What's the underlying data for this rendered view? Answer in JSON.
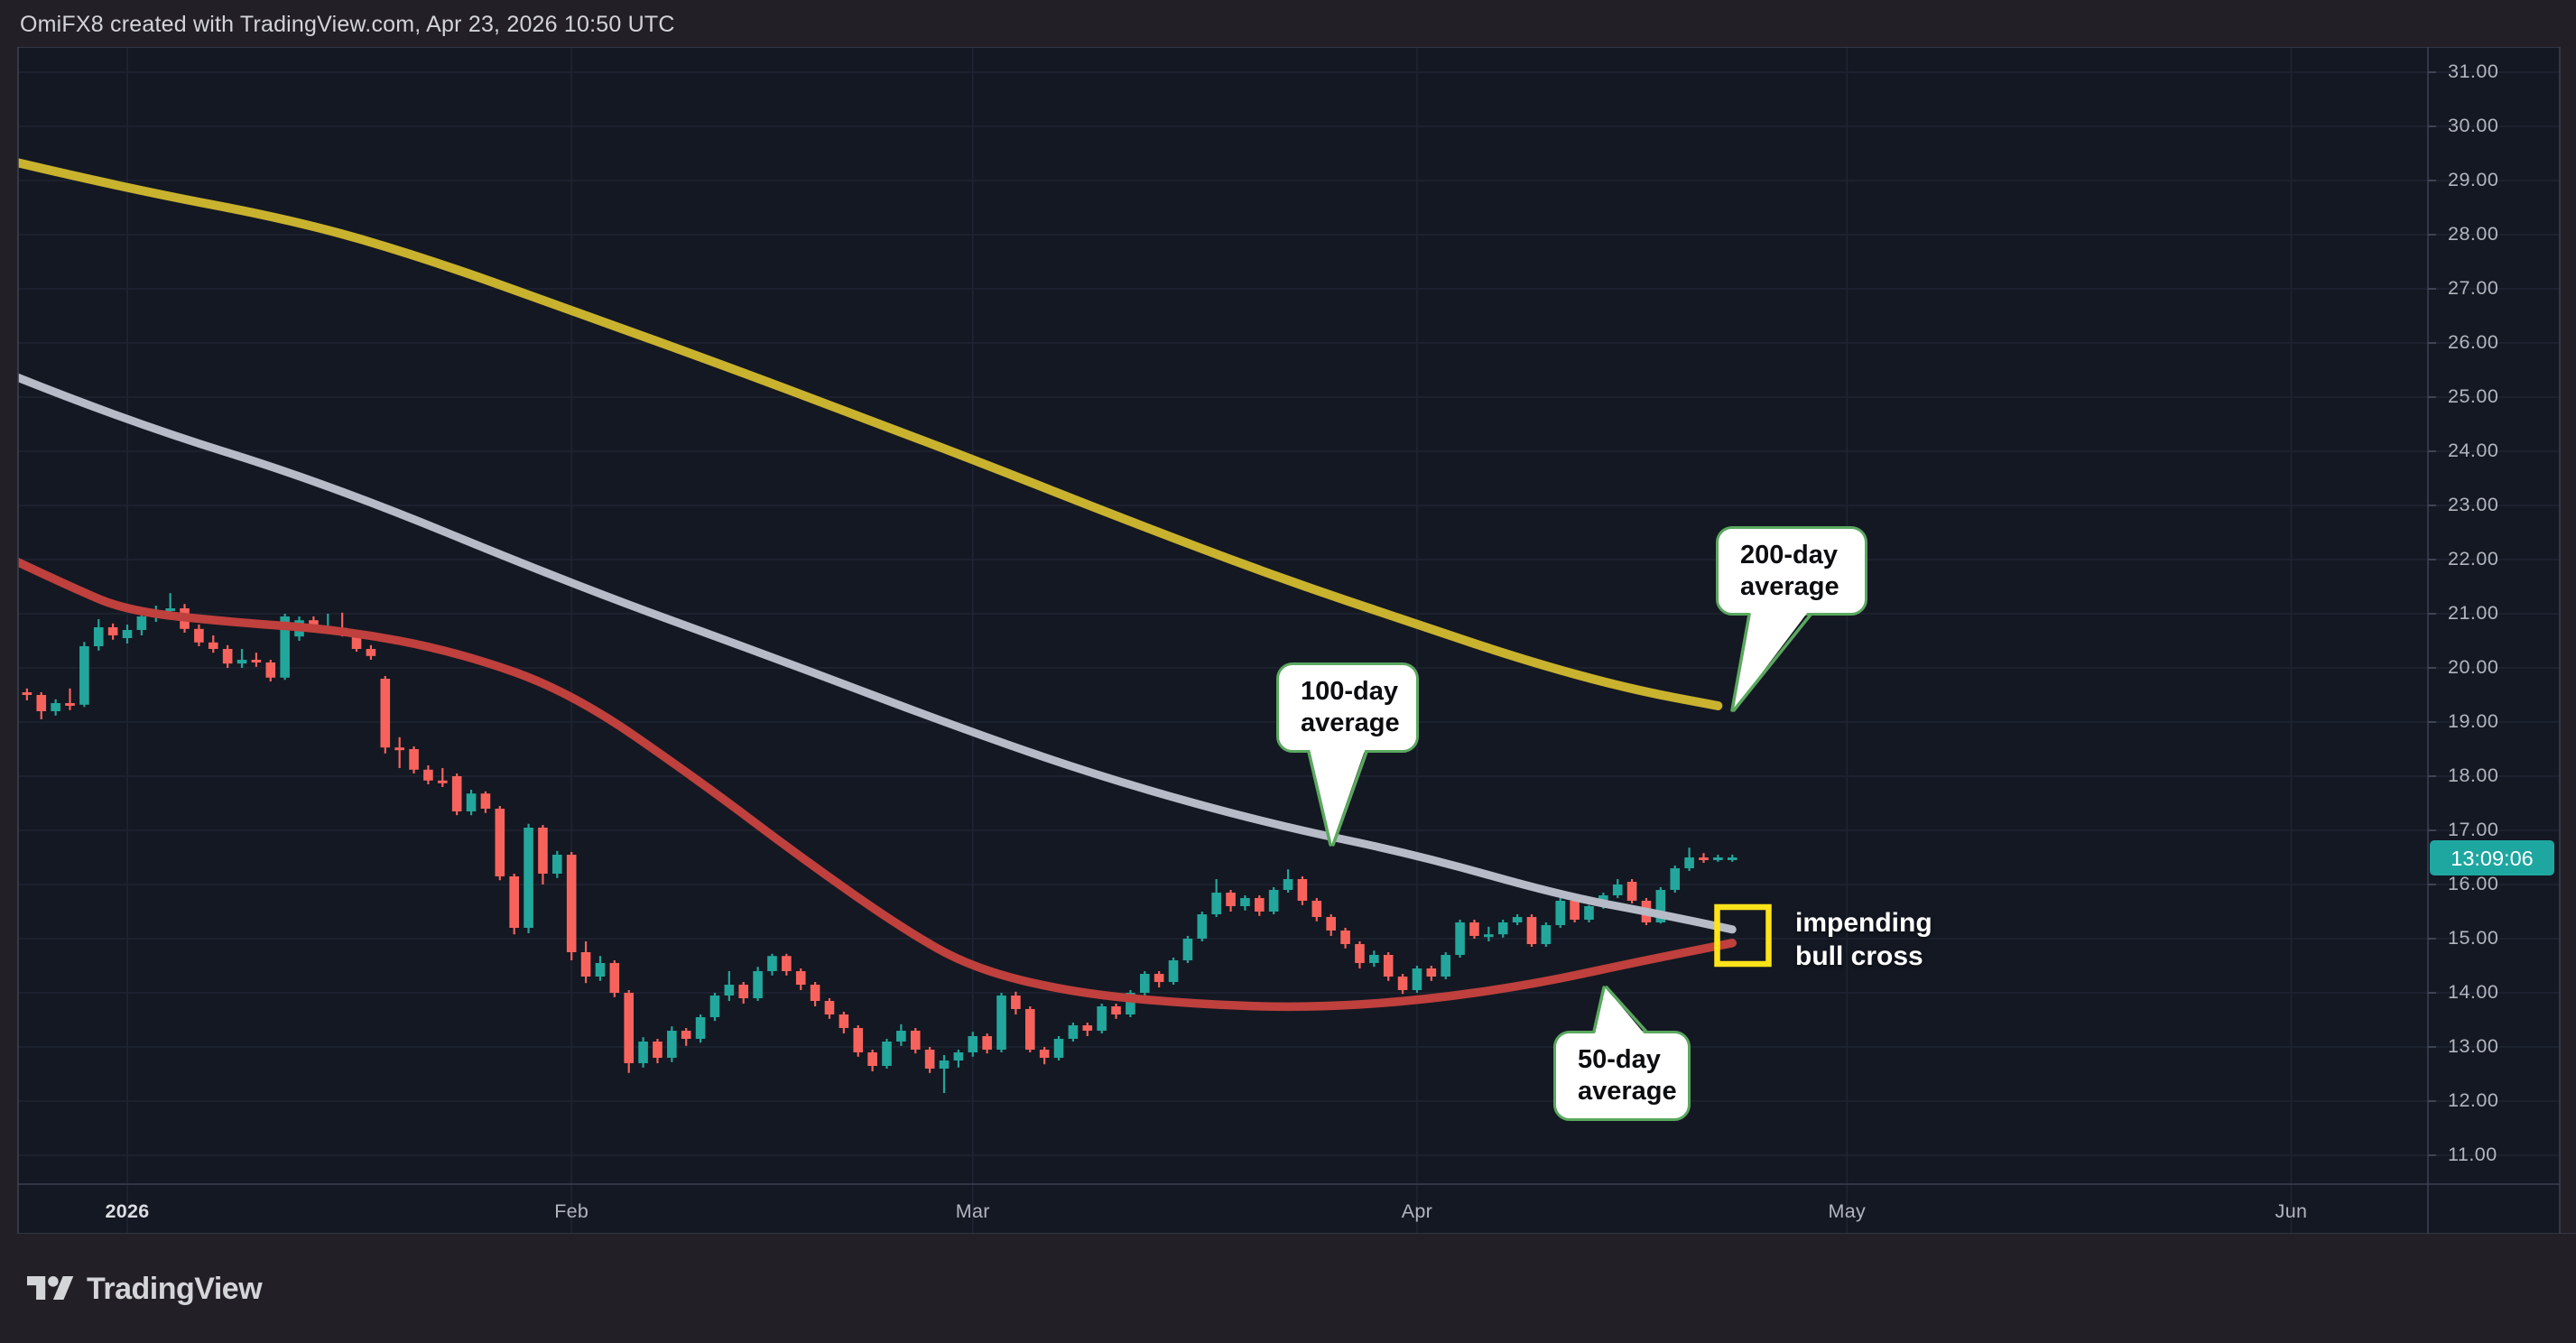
{
  "header": {
    "title": "OmiFX8 created with TradingView.com, Apr 23, 2026 10:50 UTC"
  },
  "price_axis": {
    "labels": [
      "31.00",
      "30.00",
      "29.00",
      "28.00",
      "27.00",
      "26.00",
      "25.00",
      "24.00",
      "23.00",
      "22.00",
      "21.00",
      "20.00",
      "19.00",
      "18.00",
      "17.00",
      "16.00",
      "15.00",
      "14.00",
      "13.00",
      "12.00",
      "11.00"
    ],
    "countdown": "13:09:06"
  },
  "time_axis": {
    "labels": [
      "2026",
      "Feb",
      "Mar",
      "Apr",
      "May",
      "Jun"
    ]
  },
  "annotations": {
    "callouts": [
      {
        "id": "ma200",
        "line1": "200-day",
        "line2": "average"
      },
      {
        "id": "ma100",
        "line1": "100-day",
        "line2": "average"
      },
      {
        "id": "ma50",
        "line1": "50-day",
        "line2": "average"
      }
    ],
    "cross_label": {
      "line1": "impending",
      "line2": "bull cross"
    }
  },
  "footer": {
    "brand": "TradingView"
  },
  "colors": {
    "outer_bg": "#231f27",
    "chart_bg": "#141822",
    "grid": "#1e2432",
    "separator": "#3a4050",
    "axis_text": "#b2b5be",
    "up": "#23a69b",
    "down": "#f7635c",
    "ma50": "#bf403d",
    "ma100": "#b7bbc7",
    "ma200": "#c9b22e",
    "callout_border": "#5aa85f",
    "highlight_yellow": "#ffe31a",
    "countdown_bg": "#1ea7a0"
  },
  "chart_data": {
    "type": "candlestick",
    "title": "OmiFX8 created with TradingView.com, Apr 23, 2026 10:50 UTC",
    "frequency": "daily",
    "start_date": "2025-12-24",
    "end_date": "2026-04-23",
    "ylim": [
      10.33,
      31.4
    ],
    "y_tick_step": 1.0,
    "grid": true,
    "month_ticks": [
      {
        "label": "2026",
        "date": "2026-01-01",
        "emphasis": true
      },
      {
        "label": "Feb",
        "date": "2026-02-01"
      },
      {
        "label": "Mar",
        "date": "2026-03-01"
      },
      {
        "label": "Apr",
        "date": "2026-04-01"
      },
      {
        "label": "May",
        "date": "2026-05-01"
      },
      {
        "label": "Jun",
        "date": "2026-06-01"
      }
    ],
    "candles_ohlc": [
      [
        19.5,
        19.7,
        19.38,
        19.55
      ],
      [
        19.55,
        19.62,
        19.4,
        19.5
      ],
      [
        19.5,
        19.55,
        19.05,
        19.2
      ],
      [
        19.2,
        19.42,
        19.12,
        19.35
      ],
      [
        19.35,
        19.62,
        19.22,
        19.3
      ],
      [
        19.32,
        20.48,
        19.28,
        20.4
      ],
      [
        20.4,
        20.9,
        20.32,
        20.75
      ],
      [
        20.75,
        20.82,
        20.52,
        20.6
      ],
      [
        20.55,
        20.8,
        20.45,
        20.7
      ],
      [
        20.7,
        21.0,
        20.6,
        20.95
      ],
      [
        20.95,
        21.15,
        20.85,
        21.05
      ],
      [
        21.05,
        21.38,
        20.98,
        21.1
      ],
      [
        21.1,
        21.18,
        20.65,
        20.72
      ],
      [
        20.72,
        20.8,
        20.4,
        20.47
      ],
      [
        20.47,
        20.6,
        20.28,
        20.35
      ],
      [
        20.35,
        20.42,
        20.0,
        20.08
      ],
      [
        20.08,
        20.35,
        20.0,
        20.15
      ],
      [
        20.15,
        20.28,
        20.02,
        20.1
      ],
      [
        20.1,
        20.15,
        19.75,
        19.82
      ],
      [
        19.82,
        21.0,
        19.78,
        20.95
      ],
      [
        20.58,
        20.95,
        20.5,
        20.88
      ],
      [
        20.88,
        20.95,
        20.65,
        20.72
      ],
      [
        20.72,
        21.0,
        20.66,
        20.74
      ],
      [
        20.74,
        21.02,
        20.58,
        20.65
      ],
      [
        20.65,
        20.7,
        20.3,
        20.35
      ],
      [
        20.35,
        20.42,
        20.15,
        20.22
      ],
      [
        19.8,
        19.85,
        18.42,
        18.53
      ],
      [
        18.53,
        18.72,
        18.15,
        18.5
      ],
      [
        18.5,
        18.55,
        18.05,
        18.12
      ],
      [
        18.12,
        18.2,
        17.85,
        17.92
      ],
      [
        17.92,
        18.15,
        17.8,
        17.88
      ],
      [
        18.0,
        18.05,
        17.28,
        17.35
      ],
      [
        17.35,
        17.75,
        17.28,
        17.68
      ],
      [
        17.68,
        17.72,
        17.32,
        17.4
      ],
      [
        17.4,
        17.45,
        16.08,
        16.15
      ],
      [
        16.15,
        16.2,
        15.08,
        15.2
      ],
      [
        15.2,
        17.12,
        15.1,
        17.05
      ],
      [
        17.05,
        17.1,
        16.0,
        16.2
      ],
      [
        16.2,
        16.62,
        16.12,
        16.55
      ],
      [
        16.55,
        16.6,
        14.6,
        14.75
      ],
      [
        14.75,
        14.95,
        14.18,
        14.3
      ],
      [
        14.3,
        14.68,
        14.22,
        14.55
      ],
      [
        14.55,
        14.6,
        13.92,
        14.0
      ],
      [
        14.0,
        14.05,
        12.52,
        12.7
      ],
      [
        12.7,
        13.18,
        12.62,
        13.1
      ],
      [
        13.1,
        13.15,
        12.7,
        12.8
      ],
      [
        12.8,
        13.38,
        12.72,
        13.3
      ],
      [
        13.3,
        13.35,
        13.02,
        13.15
      ],
      [
        13.15,
        13.6,
        13.08,
        13.55
      ],
      [
        13.55,
        14.0,
        13.48,
        13.95
      ],
      [
        13.95,
        14.4,
        13.85,
        14.15
      ],
      [
        14.15,
        14.2,
        13.8,
        13.9
      ],
      [
        13.9,
        14.48,
        13.85,
        14.4
      ],
      [
        14.4,
        14.72,
        14.32,
        14.68
      ],
      [
        14.68,
        14.72,
        14.32,
        14.4
      ],
      [
        14.4,
        14.45,
        14.05,
        14.15
      ],
      [
        14.15,
        14.2,
        13.75,
        13.85
      ],
      [
        13.85,
        13.9,
        13.52,
        13.6
      ],
      [
        13.6,
        13.65,
        13.25,
        13.35
      ],
      [
        13.35,
        13.4,
        12.82,
        12.9
      ],
      [
        12.9,
        12.95,
        12.55,
        12.65
      ],
      [
        12.65,
        13.15,
        12.6,
        13.1
      ],
      [
        13.1,
        13.42,
        13.02,
        13.3
      ],
      [
        13.3,
        13.35,
        12.88,
        12.95
      ],
      [
        12.95,
        13.0,
        12.52,
        12.6
      ],
      [
        12.6,
        12.85,
        12.15,
        12.75
      ],
      [
        12.75,
        12.95,
        12.62,
        12.9
      ],
      [
        12.9,
        13.28,
        12.82,
        13.2
      ],
      [
        13.2,
        13.25,
        12.88,
        12.95
      ],
      [
        12.95,
        14.0,
        12.9,
        13.95
      ],
      [
        13.95,
        14.02,
        13.6,
        13.7
      ],
      [
        13.7,
        13.75,
        12.9,
        12.95
      ],
      [
        12.95,
        13.0,
        12.68,
        12.8
      ],
      [
        12.8,
        13.2,
        12.75,
        13.15
      ],
      [
        13.15,
        13.45,
        13.1,
        13.4
      ],
      [
        13.4,
        13.45,
        13.2,
        13.3
      ],
      [
        13.3,
        13.8,
        13.25,
        13.75
      ],
      [
        13.75,
        13.8,
        13.52,
        13.6
      ],
      [
        13.6,
        14.05,
        13.55,
        14.0
      ],
      [
        14.0,
        14.4,
        13.95,
        14.35
      ],
      [
        14.35,
        14.4,
        14.1,
        14.2
      ],
      [
        14.2,
        14.65,
        14.15,
        14.6
      ],
      [
        14.6,
        15.05,
        14.55,
        15.0
      ],
      [
        15.0,
        15.5,
        14.95,
        15.45
      ],
      [
        15.45,
        16.1,
        15.4,
        15.85
      ],
      [
        15.85,
        15.9,
        15.5,
        15.6
      ],
      [
        15.6,
        15.8,
        15.52,
        15.75
      ],
      [
        15.75,
        15.8,
        15.42,
        15.5
      ],
      [
        15.5,
        15.95,
        15.45,
        15.9
      ],
      [
        15.9,
        16.28,
        15.85,
        16.1
      ],
      [
        16.1,
        16.15,
        15.62,
        15.7
      ],
      [
        15.7,
        15.75,
        15.32,
        15.4
      ],
      [
        15.4,
        15.45,
        15.05,
        15.15
      ],
      [
        15.15,
        15.2,
        14.82,
        14.9
      ],
      [
        14.9,
        14.95,
        14.45,
        14.55
      ],
      [
        14.55,
        14.78,
        14.48,
        14.7
      ],
      [
        14.7,
        14.75,
        14.22,
        14.3
      ],
      [
        14.3,
        14.35,
        13.98,
        14.05
      ],
      [
        14.05,
        14.5,
        14.0,
        14.45
      ],
      [
        14.45,
        14.5,
        14.22,
        14.3
      ],
      [
        14.3,
        14.75,
        14.25,
        14.7
      ],
      [
        14.7,
        15.35,
        14.65,
        15.3
      ],
      [
        15.3,
        15.35,
        15.0,
        15.05
      ],
      [
        15.05,
        15.22,
        14.95,
        15.08
      ],
      [
        15.08,
        15.35,
        15.02,
        15.3
      ],
      [
        15.3,
        15.45,
        15.25,
        15.4
      ],
      [
        15.4,
        15.45,
        14.85,
        14.9
      ],
      [
        14.9,
        15.3,
        14.85,
        15.25
      ],
      [
        15.25,
        15.75,
        15.2,
        15.7
      ],
      [
        15.7,
        15.75,
        15.3,
        15.35
      ],
      [
        15.35,
        15.62,
        15.3,
        15.6
      ],
      [
        15.6,
        15.85,
        15.55,
        15.8
      ],
      [
        15.8,
        16.1,
        15.75,
        16.0
      ],
      [
        16.05,
        16.1,
        15.65,
        15.7
      ],
      [
        15.7,
        15.75,
        15.25,
        15.3
      ],
      [
        15.3,
        15.95,
        15.28,
        15.9
      ],
      [
        15.9,
        16.35,
        15.85,
        16.3
      ],
      [
        16.3,
        16.68,
        16.25,
        16.5
      ],
      [
        16.5,
        16.58,
        16.4,
        16.48
      ],
      [
        16.48,
        16.55,
        16.42,
        16.5
      ],
      [
        16.5,
        16.55,
        16.42,
        16.5
      ]
    ],
    "series": [
      {
        "name": "50-day average",
        "color": "#bf403d",
        "points": [
          [
            0,
            22.0
          ],
          [
            4,
            21.5
          ],
          [
            8,
            21.05
          ],
          [
            15,
            20.85
          ],
          [
            23,
            20.7
          ],
          [
            31,
            20.3
          ],
          [
            39,
            19.55
          ],
          [
            48,
            17.9
          ],
          [
            55,
            16.5
          ],
          [
            62,
            15.2
          ],
          [
            67,
            14.45
          ],
          [
            74,
            14.0
          ],
          [
            82,
            13.8
          ],
          [
            90,
            13.72
          ],
          [
            98,
            13.85
          ],
          [
            106,
            14.15
          ],
          [
            113,
            14.55
          ],
          [
            120,
            14.92
          ]
        ]
      },
      {
        "name": "100-day average",
        "color": "#b7bbc7",
        "points": [
          [
            0,
            25.4
          ],
          [
            8,
            24.55
          ],
          [
            22,
            23.4
          ],
          [
            39,
            21.55
          ],
          [
            53,
            20.2
          ],
          [
            67,
            18.8
          ],
          [
            77,
            17.9
          ],
          [
            88,
            17.1
          ],
          [
            98,
            16.55
          ],
          [
            108,
            15.8
          ],
          [
            115,
            15.45
          ],
          [
            120,
            15.17
          ]
        ]
      },
      {
        "name": "200-day average",
        "color": "#c9b22e",
        "points": [
          [
            0,
            29.35
          ],
          [
            8,
            28.85
          ],
          [
            20,
            28.25
          ],
          [
            29,
            27.55
          ],
          [
            39,
            26.6
          ],
          [
            50,
            25.55
          ],
          [
            60,
            24.55
          ],
          [
            67,
            23.85
          ],
          [
            78,
            22.7
          ],
          [
            88,
            21.7
          ],
          [
            98,
            20.8
          ],
          [
            106,
            20.1
          ],
          [
            113,
            19.6
          ],
          [
            119,
            19.3
          ]
        ]
      }
    ],
    "highlight_box": {
      "label": "impending bull cross",
      "price_near": 15.0,
      "date_near": "2026-04-23"
    },
    "last_bar_countdown": "13:09:06"
  }
}
